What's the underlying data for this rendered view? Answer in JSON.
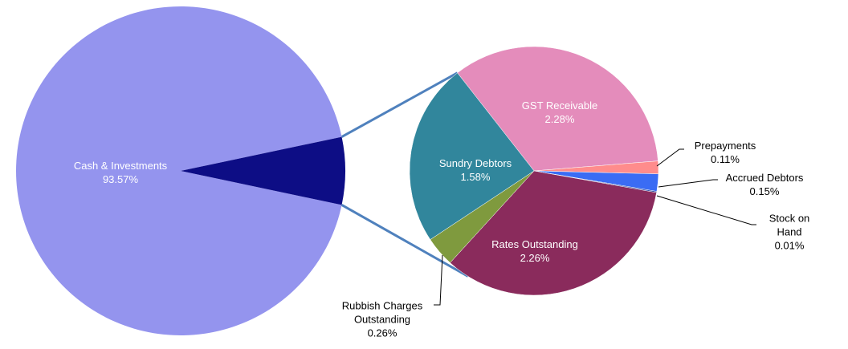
{
  "chart_data": {
    "type": "pie-of-pie",
    "categories": [
      "Cash & Investments",
      "GST Receivable",
      "Prepayments",
      "Accrued Debtors",
      "Stock on Hand",
      "Rates Outstanding",
      "Rubbish Charges Outstanding",
      "Sundry Debtors"
    ],
    "values": [
      93.57,
      2.28,
      0.11,
      0.15,
      0.01,
      2.26,
      0.26,
      1.58
    ],
    "value_labels": [
      "93.57%",
      "2.28%",
      "0.11%",
      "0.15%",
      "0.01%",
      "2.26%",
      "0.26%",
      "1.58%"
    ],
    "colors": [
      "#9494ee",
      "#e48cbb",
      "#ff8c8c",
      "#3a6cf4",
      "#1f3c96",
      "#8a2b5c",
      "#7f9a3e",
      "#31869c"
    ],
    "other_color": "#0d0d85",
    "secondary": [
      false,
      true,
      true,
      true,
      true,
      true,
      true,
      true
    ]
  }
}
